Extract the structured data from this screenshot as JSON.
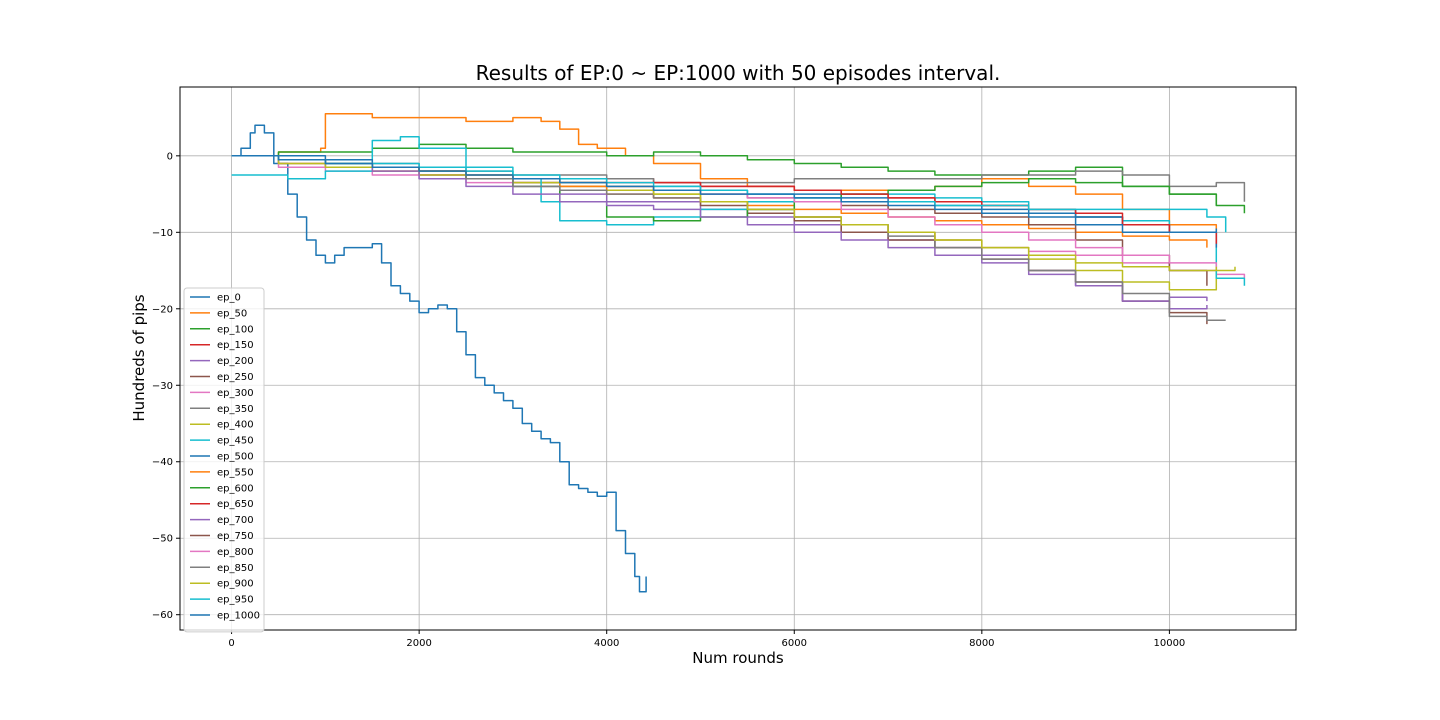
{
  "chart_data": {
    "type": "line",
    "title": "Results of EP:0 ~ EP:1000 with 50 episodes interval.",
    "xlabel": "Num rounds",
    "ylabel": "Hundreds of pips",
    "xlim": [
      -550,
      11350
    ],
    "ylim": [
      -62,
      9
    ],
    "xticks": [
      0,
      2000,
      4000,
      6000,
      8000,
      10000
    ],
    "xtick_labels": [
      "0",
      "2000",
      "4000",
      "6000",
      "8000",
      "10000"
    ],
    "yticks": [
      0,
      -10,
      -20,
      -30,
      -40,
      -50,
      -60
    ],
    "ytick_labels": [
      "0",
      "−10",
      "−20",
      "−30",
      "−40",
      "−50",
      "−60"
    ],
    "grid": true,
    "legend_position": "lower-left",
    "series": [
      {
        "name": "ep_0",
        "color": "#1f77b4",
        "x": [
          0,
          100,
          200,
          250,
          350,
          450,
          600,
          700,
          800,
          900,
          1000,
          1100,
          1200,
          1300,
          1400,
          1500,
          1600,
          1700,
          1800,
          1900,
          2000,
          2100,
          2200,
          2300,
          2400,
          2500,
          2600,
          2700,
          2800,
          2900,
          3000,
          3100,
          3200,
          3300,
          3400,
          3500,
          3600,
          3700,
          3800,
          3900,
          4000,
          4100,
          4200,
          4300,
          4350,
          4420
        ],
        "y": [
          0,
          1,
          3,
          4,
          3,
          -1,
          -5,
          -8,
          -11,
          -13,
          -14,
          -13,
          -12,
          -12,
          -12,
          -11.5,
          -14,
          -17,
          -18,
          -19,
          -20.5,
          -20,
          -19.5,
          -20,
          -23,
          -26,
          -29,
          -30,
          -31,
          -32,
          -33,
          -35,
          -36,
          -37,
          -37.5,
          -40,
          -43,
          -43.5,
          -44,
          -44.5,
          -44,
          -49,
          -52,
          -55,
          -57,
          -55
        ]
      },
      {
        "name": "ep_50",
        "color": "#ff7f0e",
        "x": [
          0,
          500,
          950,
          1000,
          1500,
          2000,
          2500,
          3000,
          3300,
          3500,
          3700,
          3900,
          4200,
          4500,
          5000,
          5500,
          6000,
          6500,
          7000,
          7500,
          8000,
          8500,
          9000,
          9500,
          10000,
          10500
        ],
        "y": [
          0,
          0.5,
          1,
          5.5,
          5,
          5,
          4.5,
          5,
          4.5,
          3.5,
          1.5,
          1,
          0,
          -1,
          -3,
          -4,
          -4.5,
          -4.5,
          -4.5,
          -4,
          -3,
          -4,
          -5,
          -7,
          -9,
          -10
        ]
      },
      {
        "name": "ep_100",
        "color": "#2ca02c",
        "x": [
          0,
          500,
          1000,
          1500,
          2000,
          2500,
          3000,
          3500,
          4000,
          4500,
          5000,
          5500,
          6000,
          6500,
          7000,
          7500,
          8000,
          8500,
          9000,
          9500,
          10000,
          10500
        ],
        "y": [
          0,
          0.5,
          0.5,
          1,
          1.5,
          1,
          0.5,
          0.5,
          0,
          0.5,
          0,
          -0.5,
          -1,
          -1.5,
          -2,
          -2.5,
          -2.5,
          -2,
          -1.5,
          -4,
          -5,
          -6.5
        ]
      },
      {
        "name": "ep_150",
        "color": "#d62728",
        "x": [
          0,
          500,
          1000,
          1500,
          2000,
          2500,
          3000,
          3500,
          4000,
          4500,
          5000,
          5500,
          6000,
          6500,
          7000,
          7500,
          8000,
          8500,
          9000,
          9500,
          10000,
          10500
        ],
        "y": [
          0,
          -1,
          -1.5,
          -2,
          -2.5,
          -3,
          -3.5,
          -3.5,
          -3,
          -3.5,
          -4,
          -4,
          -4.5,
          -5,
          -5.5,
          -6,
          -6.5,
          -7,
          -8,
          -9,
          -10,
          -12
        ]
      },
      {
        "name": "ep_200",
        "color": "#9467bd",
        "x": [
          0,
          500,
          1000,
          1500,
          2000,
          2500,
          3000,
          3500,
          4000,
          4500,
          5000,
          5500,
          6000,
          6500,
          7000,
          7500,
          8000,
          8500,
          9000,
          9500,
          10000,
          10400
        ],
        "y": [
          0,
          -0.5,
          -1,
          -1.5,
          -2.5,
          -3,
          -4,
          -5,
          -6,
          -6,
          -7,
          -8,
          -9,
          -10,
          -11,
          -12,
          -13,
          -15,
          -17,
          -19,
          -18.5,
          -19
        ]
      },
      {
        "name": "ep_250",
        "color": "#8c564b",
        "x": [
          0,
          500,
          1000,
          1500,
          2000,
          2500,
          3000,
          3500,
          4000,
          4500,
          5000,
          5500,
          6000,
          6500,
          7000,
          7500,
          8000,
          8500,
          9000,
          9500,
          10000,
          10400
        ],
        "y": [
          0,
          -0.5,
          -1,
          -1.5,
          -2,
          -3,
          -3.5,
          -4,
          -4.5,
          -5.5,
          -6.5,
          -7.5,
          -8.5,
          -10,
          -11,
          -12,
          -13.5,
          -15,
          -16.5,
          -19,
          -20.5,
          -22
        ]
      },
      {
        "name": "ep_300",
        "color": "#e377c2",
        "x": [
          0,
          500,
          1000,
          1500,
          2000,
          2500,
          3000,
          3500,
          4000,
          4500,
          5000,
          5500,
          6000,
          6500,
          7000,
          7500,
          8000,
          8500,
          9000,
          9500,
          10000,
          10500,
          10800
        ],
        "y": [
          0,
          -1.5,
          -2,
          -2.5,
          -3,
          -3.5,
          -4,
          -4.5,
          -5,
          -5.5,
          -6,
          -7,
          -8,
          -9,
          -10,
          -11,
          -12,
          -12.5,
          -13,
          -14,
          -15,
          -15.5,
          -16
        ]
      },
      {
        "name": "ep_350",
        "color": "#7f7f7f",
        "x": [
          0,
          500,
          1000,
          1500,
          2000,
          2500,
          3000,
          3500,
          4000,
          4500,
          5000,
          5500,
          6000,
          6500,
          7000,
          7500,
          8000,
          8500,
          9000,
          9500,
          10000,
          10500,
          10800
        ],
        "y": [
          0,
          -0.5,
          -1,
          -1,
          -1.5,
          -2,
          -2.5,
          -2.5,
          -3,
          -3.5,
          -3.5,
          -3.5,
          -3,
          -3,
          -3,
          -3,
          -2.5,
          -2.5,
          -2,
          -2.5,
          -4,
          -3.5,
          -6
        ]
      },
      {
        "name": "ep_400",
        "color": "#bcbd22",
        "x": [
          0,
          500,
          1000,
          1500,
          2000,
          2500,
          3000,
          3500,
          4000,
          4500,
          5000,
          5500,
          6000,
          6500,
          7000,
          7500,
          8000,
          8500,
          9000,
          9500,
          10000,
          10500,
          10700
        ],
        "y": [
          0,
          -1,
          -1.5,
          -2,
          -2.5,
          -3,
          -3.5,
          -4,
          -4.5,
          -5,
          -6,
          -7,
          -8,
          -9,
          -10,
          -11,
          -12,
          -13.5,
          -15,
          -16.5,
          -17.5,
          -15,
          -14.5
        ]
      },
      {
        "name": "ep_450",
        "color": "#17becf",
        "x": [
          0,
          300,
          600,
          1000,
          1500,
          1800,
          2000,
          2500,
          3000,
          3300,
          3500,
          4000,
          4500,
          5000,
          5500,
          6000,
          6500,
          7000,
          7500,
          8000,
          8500,
          9000,
          9500,
          10000,
          10500,
          10800
        ],
        "y": [
          -2.5,
          -2.5,
          -3,
          -2,
          2,
          2.5,
          1,
          -1.5,
          -3,
          -6,
          -8.5,
          -9,
          -8,
          -7,
          -6,
          -5.5,
          -5,
          -5,
          -5.5,
          -6,
          -7,
          -8,
          -8.5,
          -10,
          -16,
          -17
        ]
      },
      {
        "name": "ep_500",
        "color": "#1f77b4",
        "x": [
          0,
          500,
          1000,
          1500,
          2000,
          2500,
          3000,
          3500,
          4000,
          4500,
          5000,
          5500,
          6000,
          6500,
          7000,
          7500,
          8000,
          8500,
          9000,
          9500,
          10000,
          10500
        ],
        "y": [
          0,
          0,
          -0.5,
          -1.5,
          -2,
          -2.5,
          -3,
          -3.5,
          -4,
          -4,
          -4.5,
          -5,
          -5,
          -5.5,
          -6,
          -6.5,
          -7,
          -7.5,
          -8,
          -9,
          -10,
          -12
        ]
      },
      {
        "name": "ep_550",
        "color": "#ff7f0e",
        "x": [
          0,
          500,
          1000,
          1500,
          2000,
          2500,
          3000,
          3500,
          4000,
          4500,
          5000,
          5500,
          6000,
          6500,
          7000,
          7500,
          8000,
          8500,
          9000,
          9500,
          10000,
          10400
        ],
        "y": [
          0,
          -0.5,
          -1,
          -1.5,
          -2,
          -2.5,
          -3,
          -4,
          -5,
          -5.5,
          -6,
          -6.5,
          -7,
          -7.5,
          -8,
          -8.5,
          -9,
          -9.5,
          -10,
          -10.5,
          -11,
          -12
        ]
      },
      {
        "name": "ep_600",
        "color": "#2ca02c",
        "x": [
          0,
          500,
          1000,
          1500,
          2000,
          2500,
          3000,
          3500,
          4000,
          4500,
          5000,
          5500,
          6000,
          6500,
          7000,
          7500,
          8000,
          8500,
          9000,
          9500,
          10000,
          10500,
          10800
        ],
        "y": [
          0,
          -0.5,
          -1,
          -1.5,
          -2,
          -3,
          -4,
          -6,
          -8,
          -8.5,
          -8,
          -7,
          -6,
          -5,
          -4.5,
          -4,
          -3.5,
          -3,
          -3.5,
          -4,
          -5,
          -6.5,
          -7.5
        ]
      },
      {
        "name": "ep_650",
        "color": "#d62728",
        "x": [
          0,
          500,
          1000,
          1500,
          2000,
          2500,
          3000,
          3500,
          4000,
          4500,
          5000,
          5500,
          6000,
          6500,
          7000,
          7500,
          8000,
          8500,
          9000,
          9500,
          10000,
          10500
        ],
        "y": [
          0,
          -0.5,
          -1,
          -1.5,
          -2,
          -2.5,
          -3,
          -3,
          -3.5,
          -3.5,
          -4,
          -4,
          -4.5,
          -5,
          -5.5,
          -6,
          -6.5,
          -7,
          -7.5,
          -9,
          -10,
          -11.5
        ]
      },
      {
        "name": "ep_700",
        "color": "#9467bd",
        "x": [
          0,
          500,
          1000,
          1500,
          2000,
          2500,
          3000,
          3500,
          4000,
          4500,
          5000,
          5500,
          6000,
          6500,
          7000,
          7500,
          8000,
          8500,
          9000,
          9500,
          10000,
          10400
        ],
        "y": [
          0,
          -0.5,
          -1,
          -2,
          -3,
          -4,
          -5,
          -6,
          -6.5,
          -7,
          -8,
          -9,
          -10,
          -11,
          -12,
          -13,
          -14,
          -15.5,
          -17,
          -19,
          -20,
          -19.5
        ]
      },
      {
        "name": "ep_750",
        "color": "#8c564b",
        "x": [
          0,
          500,
          1000,
          1500,
          2000,
          2500,
          3000,
          3500,
          4000,
          4500,
          5000,
          5500,
          6000,
          6500,
          7000,
          7500,
          8000,
          8500,
          9000,
          9500,
          10000,
          10400
        ],
        "y": [
          0,
          -0.5,
          -1,
          -1.5,
          -2,
          -2.5,
          -3,
          -3.5,
          -4,
          -4.5,
          -5,
          -5.5,
          -6,
          -6.5,
          -7,
          -7.5,
          -8,
          -9,
          -11,
          -13,
          -15,
          -17
        ]
      },
      {
        "name": "ep_800",
        "color": "#e377c2",
        "x": [
          0,
          500,
          1000,
          1500,
          2000,
          2500,
          3000,
          3500,
          4000,
          4500,
          5000,
          5500,
          6000,
          6500,
          7000,
          7500,
          8000,
          8500,
          9000,
          9500,
          10000,
          10500
        ],
        "y": [
          0,
          -0.5,
          -1,
          -1.5,
          -2,
          -2.5,
          -3,
          -3.5,
          -4,
          -4.5,
          -5,
          -5.5,
          -6,
          -7,
          -8,
          -9,
          -10,
          -11,
          -12,
          -13,
          -14,
          -15
        ]
      },
      {
        "name": "ep_850",
        "color": "#7f7f7f",
        "x": [
          0,
          500,
          1000,
          1500,
          2000,
          2500,
          3000,
          3500,
          4000,
          4500,
          5000,
          5500,
          6000,
          6500,
          7000,
          7500,
          8000,
          8500,
          9000,
          9500,
          10000,
          10400,
          10600
        ],
        "y": [
          0,
          -0.5,
          -1,
          -1.5,
          -2,
          -3,
          -4,
          -4.5,
          -5,
          -5.5,
          -6,
          -7,
          -8,
          -9,
          -10.5,
          -12,
          -13.5,
          -15,
          -16.5,
          -18,
          -21,
          -21.5,
          -21.5
        ]
      },
      {
        "name": "ep_900",
        "color": "#bcbd22",
        "x": [
          0,
          500,
          1000,
          1500,
          2000,
          2500,
          3000,
          3500,
          4000,
          4500,
          5000,
          5500,
          6000,
          6500,
          7000,
          7500,
          8000,
          8500,
          9000,
          9500,
          10000,
          10500
        ],
        "y": [
          0,
          -0.5,
          -1,
          -1.5,
          -2,
          -2.5,
          -3,
          -3.5,
          -4,
          -5,
          -6,
          -7,
          -8,
          -9,
          -10,
          -11,
          -12,
          -13,
          -14,
          -14.5,
          -15,
          -14.5
        ]
      },
      {
        "name": "ep_950",
        "color": "#17becf",
        "x": [
          0,
          500,
          1000,
          1500,
          2000,
          2500,
          3000,
          3500,
          4000,
          4500,
          5000,
          5500,
          6000,
          6500,
          7000,
          7500,
          8000,
          8500,
          9000,
          9500,
          10000,
          10400,
          10600
        ],
        "y": [
          0,
          -0.5,
          -1,
          -1,
          -1.5,
          -2,
          -2.5,
          -3,
          -3.5,
          -4,
          -4.5,
          -5,
          -5.5,
          -6,
          -6,
          -6.5,
          -6.5,
          -7,
          -7,
          -7,
          -7,
          -8,
          -10
        ]
      },
      {
        "name": "ep_1000",
        "color": "#1f77b4",
        "x": [
          0,
          500,
          1000,
          1500,
          2000,
          2500,
          3000,
          3500,
          4000,
          4500,
          5000,
          5500,
          6000,
          6500,
          7000,
          7500,
          8000,
          8500,
          9000,
          9500,
          10000,
          10500
        ],
        "y": [
          0,
          -0.5,
          -1,
          -1.5,
          -2,
          -2.5,
          -3,
          -3.5,
          -4,
          -4.5,
          -5,
          -5,
          -5.5,
          -6,
          -6.5,
          -7,
          -7.5,
          -8,
          -9,
          -10,
          -10,
          -9.5
        ]
      }
    ]
  }
}
